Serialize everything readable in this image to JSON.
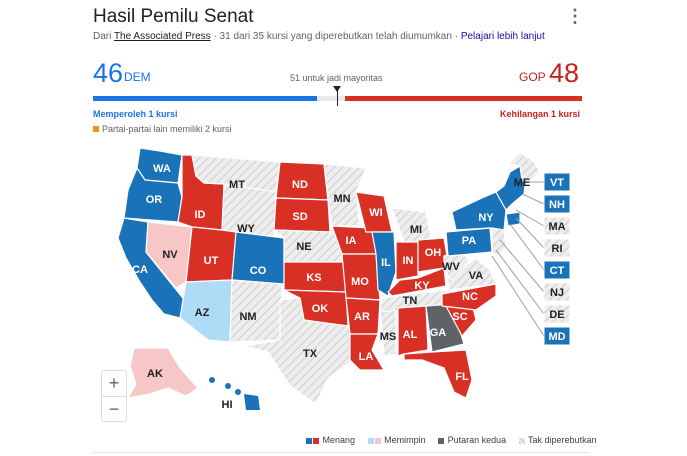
{
  "header": {
    "title": "Hasil Pemilu Senat",
    "source_prefix": "Dari",
    "source_name": "The Associated Press",
    "source_detail": "· 31 dari 35 kursi yang diperebutkan telah diumumkan ·",
    "learn_more": "Pelajari lebih lanjut",
    "menu_icon": "more-vert-icon"
  },
  "tally": {
    "dem_count": "46",
    "dem_label": "DEM",
    "gop_count": "48",
    "gop_label": "GOP",
    "majority_text": "51 untuk jadi mayoritas",
    "dem_seats": 46,
    "gop_seats": 48,
    "total_seats": 100,
    "gained_text": "Memperoleh 1 kursi",
    "lost_text": "Kehilangan 1 kursi",
    "other_text": "Partai-partai lain memiliki 2 kursi"
  },
  "colors": {
    "dem": "#1a73e8",
    "dem_map": "#1a73b8",
    "gop": "#d93025",
    "lead_dem": "#aedcf6",
    "lead_gop": "#f7c6c6",
    "runoff": "#5f6368",
    "other": "#f29900",
    "not_contested": "#e8e8e8"
  },
  "states": {
    "WA": "WA",
    "OR": "OR",
    "CA": "CA",
    "NV": "NV",
    "ID": "ID",
    "MT": "MT",
    "WY": "WY",
    "UT": "UT",
    "CO": "CO",
    "AZ": "AZ",
    "NM": "NM",
    "ND": "ND",
    "SD": "SD",
    "NE": "NE",
    "KS": "KS",
    "OK": "OK",
    "TX": "TX",
    "MN": "MN",
    "IA": "IA",
    "MO": "MO",
    "AR": "AR",
    "LA": "LA",
    "WI": "WI",
    "IL": "IL",
    "MS": "MS",
    "MI": "MI",
    "IN": "IN",
    "KY": "KY",
    "TN": "TN",
    "AL": "AL",
    "OH": "OH",
    "GA": "GA",
    "FL": "FL",
    "SC": "SC",
    "NC": "NC",
    "VA": "VA",
    "WV": "WV",
    "PA": "PA",
    "NY": "NY",
    "ME": "ME",
    "AK": "AK",
    "HI": "HI",
    "VT": "VT",
    "NH": "NH",
    "MA": "MA",
    "RI": "RI",
    "CT": "CT",
    "NJ": "NJ",
    "DE": "DE",
    "MD": "MD"
  },
  "zoom": {
    "in": "+",
    "out": "−"
  },
  "legend": {
    "won": "Menang",
    "leading": "Memimpin",
    "runoff": "Putaran kedua",
    "not_contested": "Tak diperebutkan"
  }
}
